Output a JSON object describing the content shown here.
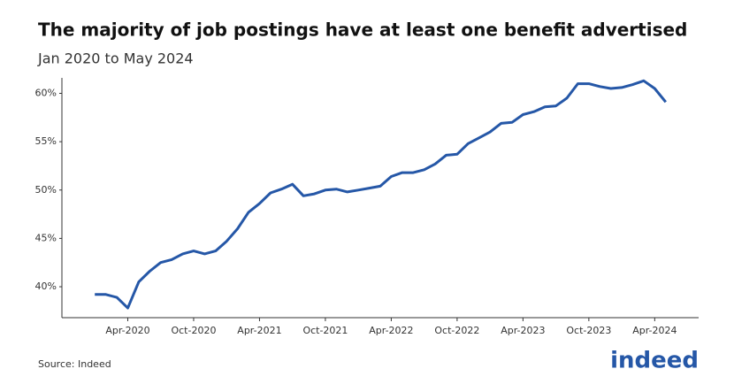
{
  "chart_data": {
    "type": "line",
    "title": "The majority of job postings have at least one benefit advertised",
    "subtitle": "Jan 2020 to May 2024",
    "source": "Source: Indeed",
    "logo": "indeed",
    "x": [
      "2020-01",
      "2020-02",
      "2020-03",
      "2020-04",
      "2020-05",
      "2020-06",
      "2020-07",
      "2020-08",
      "2020-09",
      "2020-10",
      "2020-11",
      "2020-12",
      "2021-01",
      "2021-02",
      "2021-03",
      "2021-04",
      "2021-05",
      "2021-06",
      "2021-07",
      "2021-08",
      "2021-09",
      "2021-10",
      "2021-11",
      "2021-12",
      "2022-01",
      "2022-02",
      "2022-03",
      "2022-04",
      "2022-05",
      "2022-06",
      "2022-07",
      "2022-08",
      "2022-09",
      "2022-10",
      "2022-11",
      "2022-12",
      "2023-01",
      "2023-02",
      "2023-03",
      "2023-04",
      "2023-05",
      "2023-06",
      "2023-07",
      "2023-08",
      "2023-09",
      "2023-10",
      "2023-11",
      "2023-12",
      "2024-01",
      "2024-02",
      "2024-03",
      "2024-04",
      "2024-05"
    ],
    "series": [
      {
        "color": "#2557a7",
        "values": [
          39.2,
          39.2,
          38.9,
          37.8,
          40.5,
          41.6,
          42.5,
          42.8,
          43.4,
          43.7,
          43.4,
          43.7,
          44.7,
          46.0,
          47.7,
          48.6,
          49.7,
          50.1,
          50.6,
          49.4,
          49.6,
          50.0,
          50.1,
          49.8,
          50.0,
          50.2,
          50.4,
          51.4,
          51.8,
          51.8,
          52.1,
          52.7,
          53.6,
          53.7,
          54.8,
          55.4,
          56.0,
          56.9,
          57.0,
          57.8,
          58.1,
          58.6,
          58.7,
          59.5,
          61.0,
          61.0,
          60.7,
          60.5,
          60.6,
          60.9,
          61.3,
          60.5,
          59.1
        ]
      }
    ],
    "xlim": [
      "2019-10",
      "2024-08"
    ],
    "xticks": [
      {
        "value": "2020-04",
        "label": "Apr-2020"
      },
      {
        "value": "2020-10",
        "label": "Oct-2020"
      },
      {
        "value": "2021-04",
        "label": "Apr-2021"
      },
      {
        "value": "2021-10",
        "label": "Oct-2021"
      },
      {
        "value": "2022-04",
        "label": "Apr-2022"
      },
      {
        "value": "2022-10",
        "label": "Oct-2022"
      },
      {
        "value": "2023-04",
        "label": "Apr-2023"
      },
      {
        "value": "2023-10",
        "label": "Oct-2023"
      },
      {
        "value": "2024-04",
        "label": "Apr-2024"
      }
    ],
    "ylim": [
      36.8,
      61.6
    ],
    "yticks": [
      {
        "value": 40,
        "label": "40%"
      },
      {
        "value": 45,
        "label": "45%"
      },
      {
        "value": 50,
        "label": "50%"
      },
      {
        "value": 55,
        "label": "55%"
      },
      {
        "value": 60,
        "label": "60%"
      }
    ]
  }
}
